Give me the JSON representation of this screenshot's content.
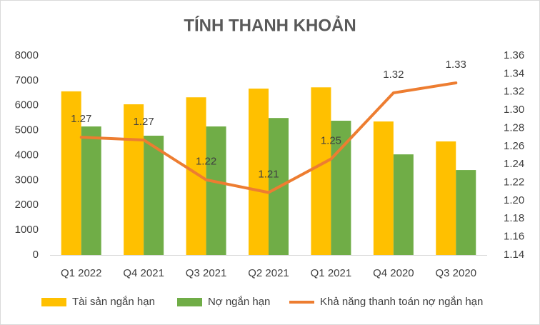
{
  "chart_data": {
    "type": "bar-line",
    "title": "TÍNH THANH KHOẢN",
    "categories": [
      "Q1 2022",
      "Q4 2021",
      "Q3 2021",
      "Q2 2021",
      "Q1 2021",
      "Q4 2020",
      "Q3 2020"
    ],
    "series": [
      {
        "name": "Tài sản ngắn hạn",
        "type": "bar",
        "color": "#FFC000",
        "values": [
          6570,
          6050,
          6330,
          6680,
          6730,
          5360,
          4560
        ]
      },
      {
        "name": "Nợ ngắn hạn",
        "type": "bar",
        "color": "#70AD47",
        "values": [
          5160,
          4790,
          5160,
          5500,
          5390,
          4040,
          3410
        ]
      },
      {
        "name": "Khả năng thanh toán nợ ngắn hạn",
        "type": "line",
        "axis": "y2",
        "color": "#ED7D31",
        "values": [
          1.27,
          1.267,
          1.223,
          1.209,
          1.246,
          1.319,
          1.33
        ],
        "value_labels": [
          "1.27",
          "1.27",
          "1.22",
          "1.21",
          "1.25",
          "1.32",
          "1.33"
        ]
      }
    ],
    "ylim": [
      0,
      8000
    ],
    "yticks": [
      0,
      1000,
      2000,
      3000,
      4000,
      5000,
      6000,
      7000,
      8000
    ],
    "y2lim": [
      1.14,
      1.36
    ],
    "y2ticks": [
      1.14,
      1.16,
      1.18,
      {
        "value": 1.2,
        "label": "1.20"
      },
      1.22,
      1.24,
      1.26,
      1.28,
      {
        "value": 1.3,
        "label": "1.30"
      },
      1.32,
      1.34,
      1.36
    ],
    "grid": false,
    "legend": "bottom"
  }
}
